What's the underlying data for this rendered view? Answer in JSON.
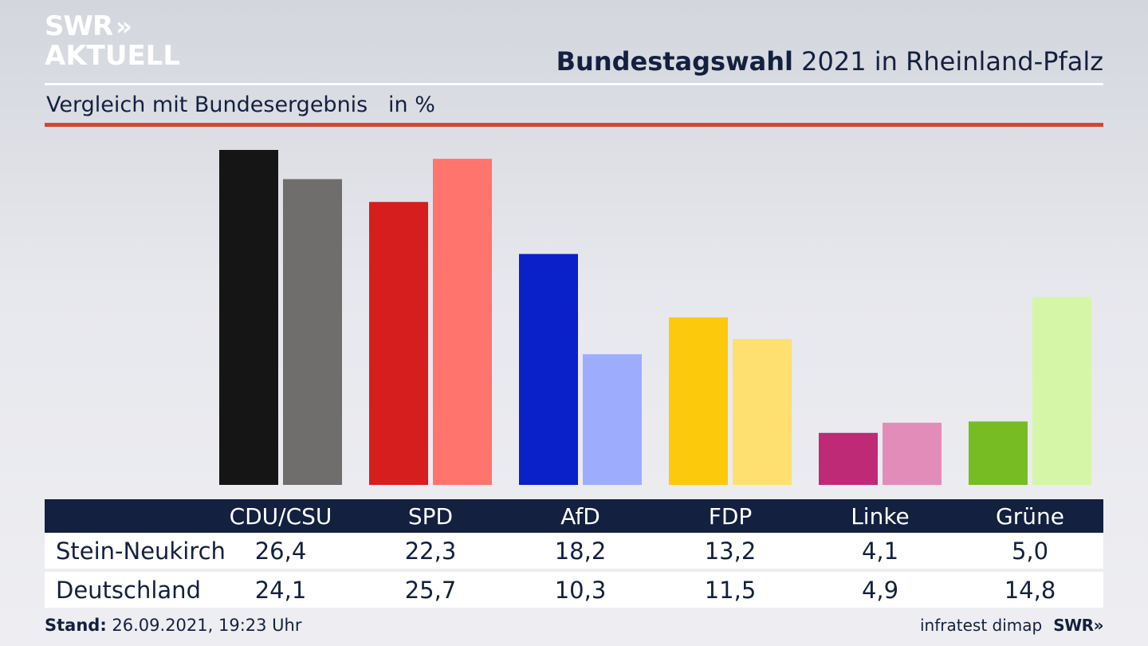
{
  "brand": {
    "line1": "SWR",
    "line2": "AKTUELL",
    "chevrons": "»"
  },
  "header": {
    "title_bold": "Bundestagswahl",
    "title_rest": " 2021 in Rheinland-Pfalz",
    "subtitle": "Vergleich mit Bundesergebnis",
    "unit": "in %"
  },
  "chart_data": {
    "type": "bar",
    "title": "Bundestagswahl 2021 in Rheinland-Pfalz",
    "subtitle": "Vergleich mit Bundesergebnis",
    "unit": "in %",
    "categories": [
      "CDU/CSU",
      "SPD",
      "AfD",
      "FDP",
      "Linke",
      "Grüne"
    ],
    "series": [
      {
        "name": "Stein-Neukirch",
        "values": [
          26.4,
          22.3,
          18.2,
          13.2,
          4.1,
          5.0
        ],
        "colors": [
          "#151515",
          "#d61e1e",
          "#0a20c8",
          "#fdc90c",
          "#be2a75",
          "#78bc23"
        ]
      },
      {
        "name": "Deutschland",
        "values": [
          24.1,
          25.7,
          10.3,
          11.5,
          4.9,
          14.8
        ],
        "colors": [
          "#6f6e6c",
          "#ff746d",
          "#9eacfd",
          "#fde070",
          "#e28db9",
          "#d5f6a6"
        ]
      }
    ],
    "ylim": [
      0,
      26.4
    ],
    "grid": false,
    "legend": "table-below"
  },
  "table": {
    "headers": [
      "CDU/CSU",
      "SPD",
      "AfD",
      "FDP",
      "Linke",
      "Grüne"
    ],
    "rows": [
      {
        "label": "Stein-Neukirch",
        "values": [
          "26,4",
          "22,3",
          "18,2",
          "13,2",
          "4,1",
          "5,0"
        ]
      },
      {
        "label": "Deutschland",
        "values": [
          "24,1",
          "25,7",
          "10,3",
          "11,5",
          "4,9",
          "14,8"
        ]
      }
    ]
  },
  "footer": {
    "stand_label": "Stand:",
    "stand_value": " 26.09.2021, 19:23 Uhr",
    "source": "infratest dimap",
    "swr": "SWR»"
  }
}
